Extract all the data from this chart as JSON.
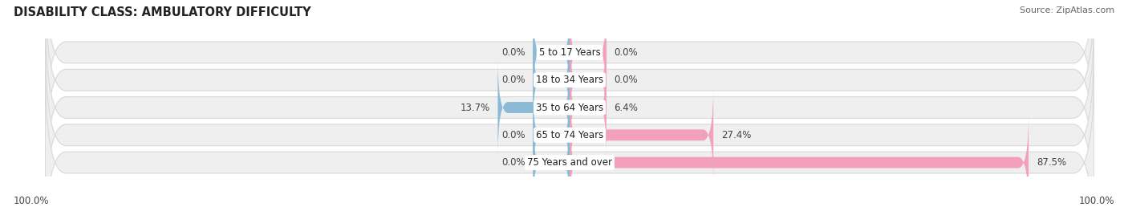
{
  "title": "DISABILITY CLASS: AMBULATORY DIFFICULTY",
  "source": "Source: ZipAtlas.com",
  "categories": [
    "5 to 17 Years",
    "18 to 34 Years",
    "35 to 64 Years",
    "65 to 74 Years",
    "75 Years and over"
  ],
  "male_values": [
    0.0,
    0.0,
    13.7,
    0.0,
    0.0
  ],
  "female_values": [
    0.0,
    0.0,
    6.4,
    27.4,
    87.5
  ],
  "male_color": "#8bbad6",
  "female_color": "#f2a0bc",
  "female_dark_color": "#e8618c",
  "row_bg_color": "#efefef",
  "row_border_color": "#d8d8d8",
  "max_val": 100.0,
  "stub_val": 7.0,
  "x_left_label": "100.0%",
  "x_right_label": "100.0%",
  "title_fontsize": 10.5,
  "label_fontsize": 8.5,
  "source_fontsize": 8,
  "value_fontsize": 8.5
}
